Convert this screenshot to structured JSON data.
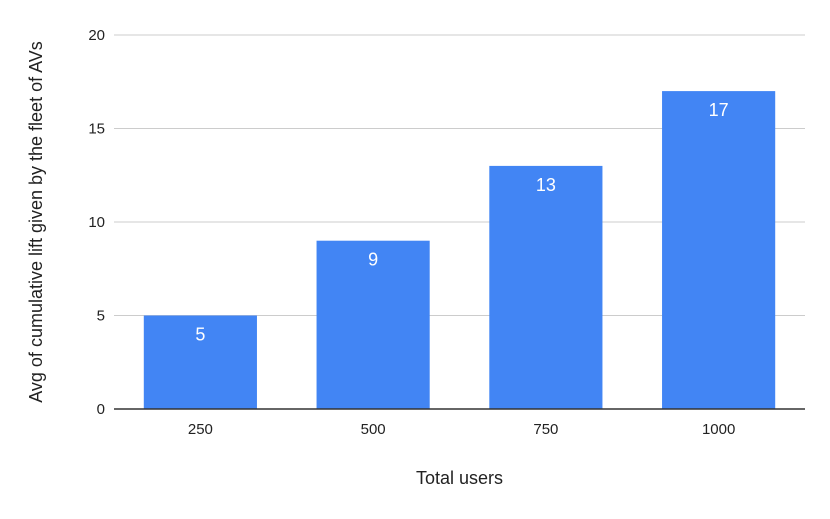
{
  "chart_data": {
    "type": "bar",
    "categories": [
      "250",
      "500",
      "750",
      "1000"
    ],
    "values": [
      5,
      9,
      13,
      17
    ],
    "data_labels": [
      "5",
      "9",
      "13",
      "17"
    ],
    "title": "",
    "xlabel": "Total users",
    "ylabel": "Avg of cumulative lift given by the fleet of AVs",
    "ylim": [
      0,
      20
    ],
    "yticks": [
      0,
      5,
      10,
      15,
      20
    ],
    "ytick_labels": [
      "0",
      "5",
      "10",
      "15",
      "20"
    ],
    "grid": true,
    "legend": "none",
    "colors": {
      "bar": "#4285f4",
      "grid": "#cccccc",
      "axis": "#333333",
      "text": "#222222",
      "data_label": "#ffffff"
    }
  }
}
